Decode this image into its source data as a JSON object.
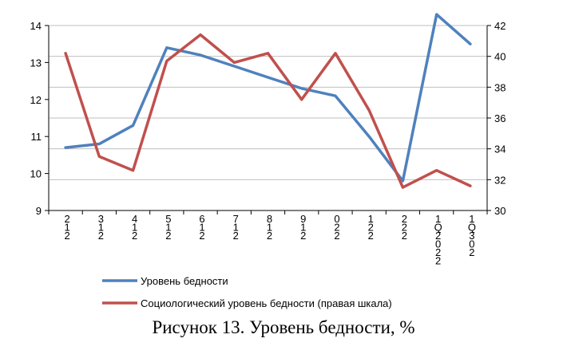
{
  "caption": "Рисунок 13. Уровень бедности, %",
  "chart_data": {
    "type": "line",
    "categories": [
      [
        "2",
        "1",
        "2"
      ],
      [
        "3",
        "1",
        "2"
      ],
      [
        "4",
        "1",
        "2"
      ],
      [
        "5",
        "1",
        "2"
      ],
      [
        "6",
        "1",
        "2"
      ],
      [
        "7",
        "1",
        "2"
      ],
      [
        "8",
        "1",
        "2"
      ],
      [
        "9",
        "1",
        "2"
      ],
      [
        "0",
        "2",
        "2"
      ],
      [
        "1",
        "2",
        "2"
      ],
      [
        "2",
        "2",
        "2"
      ],
      [
        "1",
        "Q",
        "2",
        "0",
        "2",
        "2"
      ],
      [
        "1",
        "Q",
        "3",
        "0",
        "2"
      ]
    ],
    "y_left": {
      "min": 9,
      "max": 14,
      "ticks": [
        "9",
        "10",
        "11",
        "12",
        "13",
        "14"
      ]
    },
    "y_right": {
      "min": 30,
      "max": 42,
      "ticks": [
        "30",
        "32",
        "34",
        "36",
        "38",
        "40",
        "42"
      ]
    },
    "grid": "horizontal",
    "legend_position": "bottom",
    "series": [
      {
        "name": "Уровень бедности",
        "axis": "left",
        "color": "#4F81BD",
        "values": [
          10.7,
          10.8,
          11.3,
          13.4,
          13.2,
          12.9,
          12.6,
          12.3,
          12.1,
          11.0,
          9.8,
          14.3,
          13.5
        ]
      },
      {
        "name": "Социологический уровень бедности (правая шкала)",
        "axis": "right",
        "color": "#C0504D",
        "values": [
          40.2,
          33.5,
          32.6,
          39.7,
          41.4,
          39.6,
          40.2,
          37.2,
          40.2,
          36.5,
          31.5,
          32.6,
          31.6
        ]
      }
    ]
  }
}
